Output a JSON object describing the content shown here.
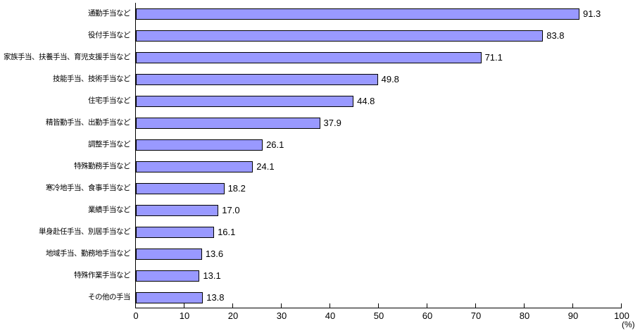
{
  "chart_data": {
    "type": "bar",
    "orientation": "horizontal",
    "title": "",
    "xlabel": "",
    "ylabel": "",
    "unit_label": "(%)",
    "xlim": [
      0,
      100
    ],
    "x_ticks": [
      0,
      10,
      20,
      30,
      40,
      50,
      60,
      70,
      80,
      90,
      100
    ],
    "grid": false,
    "legend": false,
    "bar_color": "#9999FF",
    "bar_border_color": "#000000",
    "categories": [
      "通勤手当など",
      "役付手当など",
      "家族手当、扶養手当、育児支援手当など",
      "技能手当、技術手当など",
      "住宅手当など",
      "精皆勤手当、出勤手当など",
      "調整手当など",
      "特殊勤務手当など",
      "寒冷地手当、食事手当など",
      "業績手当など",
      "単身赴任手当、別居手当など",
      "地域手当、勤務地手当など",
      "特殊作業手当など",
      "その他の手当"
    ],
    "values": [
      91.3,
      83.8,
      71.1,
      49.8,
      44.8,
      37.9,
      26.1,
      24.1,
      18.2,
      17.0,
      16.1,
      13.6,
      13.1,
      13.8
    ],
    "value_labels": [
      "91.3",
      "83.8",
      "71.1",
      "49.8",
      "44.8",
      "37.9",
      "26.1",
      "24.1",
      "18.2",
      "17.0",
      "16.1",
      "13.6",
      "13.1",
      "13.8"
    ]
  }
}
